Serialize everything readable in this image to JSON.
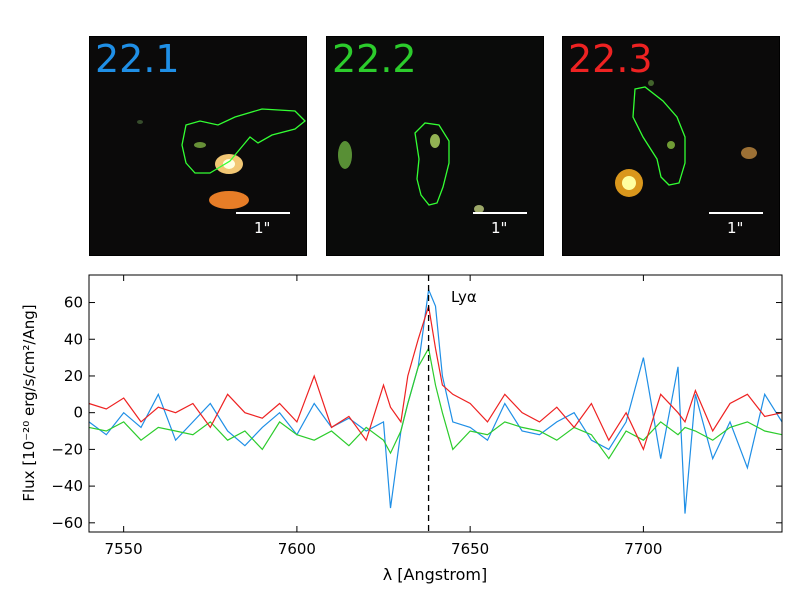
{
  "panels": [
    {
      "label": "22.1",
      "label_color": "#1f8fe6",
      "scale_label": "1\""
    },
    {
      "label": "22.2",
      "label_color": "#2ccc2c",
      "scale_label": "1\""
    },
    {
      "label": "22.3",
      "label_color": "#ee2222",
      "scale_label": "1\""
    }
  ],
  "contour_color": "#33ff33",
  "chart_data": {
    "type": "line",
    "xlabel": "λ [Angstrom]",
    "ylabel": "Flux [10⁻²⁰ erg/s/cm²/Ang]",
    "xlim": [
      7540,
      7740
    ],
    "ylim": [
      -65,
      75
    ],
    "xticks": [
      7550,
      7600,
      7650,
      7700
    ],
    "yticks": [
      -60,
      -40,
      -20,
      0,
      20,
      40,
      60
    ],
    "vline": {
      "x": 7638,
      "label": "Lyα",
      "style": "dashed"
    },
    "x": [
      7540,
      7545,
      7550,
      7555,
      7560,
      7565,
      7570,
      7575,
      7580,
      7585,
      7590,
      7595,
      7600,
      7605,
      7610,
      7615,
      7620,
      7625,
      7627,
      7630,
      7632,
      7635,
      7638,
      7640,
      7642,
      7645,
      7650,
      7655,
      7660,
      7665,
      7670,
      7675,
      7680,
      7685,
      7690,
      7695,
      7700,
      7705,
      7710,
      7712,
      7715,
      7720,
      7725,
      7730,
      7735,
      7740
    ],
    "series": [
      {
        "color": "#1f8fe6",
        "values": [
          -5,
          -12,
          0,
          -8,
          10,
          -15,
          -5,
          5,
          -10,
          -18,
          -8,
          0,
          -12,
          5,
          -8,
          -3,
          -10,
          -5,
          -52,
          -10,
          5,
          25,
          67,
          58,
          20,
          -5,
          -8,
          -15,
          5,
          -10,
          -12,
          -5,
          0,
          -15,
          -20,
          -5,
          30,
          -25,
          25,
          -55,
          10,
          -25,
          -5,
          -30,
          10,
          -5
        ]
      },
      {
        "color": "#2ccc2c",
        "values": [
          -8,
          -10,
          -5,
          -15,
          -8,
          -10,
          -12,
          -5,
          -15,
          -10,
          -20,
          -5,
          -12,
          -15,
          -10,
          -18,
          -8,
          -15,
          -22,
          -10,
          5,
          25,
          35,
          15,
          0,
          -20,
          -10,
          -12,
          -5,
          -8,
          -10,
          -15,
          -8,
          -12,
          -25,
          -10,
          -15,
          -5,
          -12,
          -8,
          -10,
          -15,
          -8,
          -5,
          -10,
          -12
        ]
      },
      {
        "color": "#ee2222",
        "values": [
          5,
          2,
          8,
          -5,
          3,
          0,
          5,
          -8,
          10,
          0,
          -3,
          5,
          -5,
          20,
          -8,
          -2,
          -15,
          15,
          3,
          -5,
          20,
          40,
          58,
          35,
          15,
          10,
          5,
          -5,
          10,
          0,
          -5,
          3,
          -8,
          5,
          -15,
          0,
          -20,
          10,
          0,
          -5,
          12,
          -10,
          5,
          10,
          -2,
          0
        ]
      }
    ]
  }
}
